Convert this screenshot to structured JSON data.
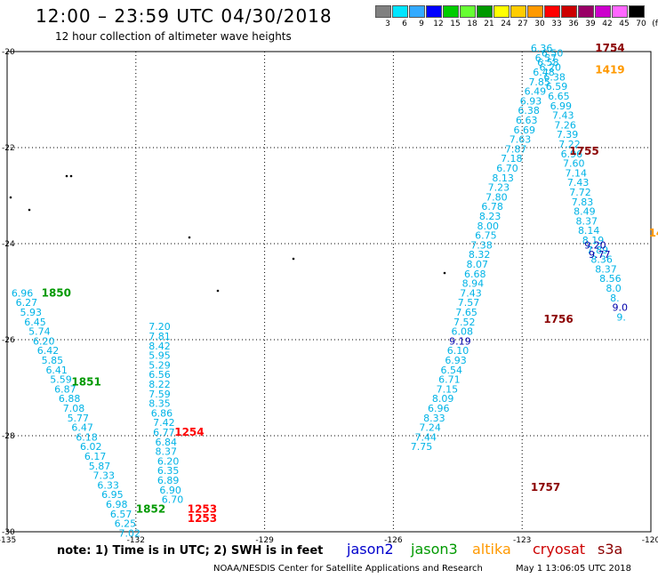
{
  "header": {
    "title": "12:00 – 23:59 UTC 04/30/2018",
    "subtitle": "12 hour collection of altimeter wave heights"
  },
  "scale": {
    "labels": [
      "3",
      "6",
      "9",
      "12",
      "15",
      "18",
      "21",
      "24",
      "27",
      "30",
      "33",
      "36",
      "39",
      "42",
      "45",
      "70",
      "(ft)"
    ],
    "colors": [
      "#808080",
      "#00e5ff",
      "#33aaff",
      "#0000ff",
      "#00cc00",
      "#66ff33",
      "#009900",
      "#ffff00",
      "#ffcc00",
      "#ff9900",
      "#ff0000",
      "#cc0000",
      "#990066",
      "#cc00cc",
      "#ff66ff",
      "#000000"
    ]
  },
  "footer": {
    "note": "note:  1) Time is in UTC;  2) SWH is in feet",
    "credit": "NOAA/NESDIS Center for Satellite Applications and Research",
    "stamp": "May  1 13:06:05 UTC 2018",
    "satellites": [
      {
        "name": "jason2",
        "color": "#0000cc"
      },
      {
        "name": "jason3",
        "color": "#009900"
      },
      {
        "name": "altika",
        "color": "#ff9900"
      },
      {
        "name": "cryosat",
        "color": "#cc0000"
      },
      {
        "name": "s3a",
        "color": "#8b0000"
      }
    ]
  },
  "chart_data": {
    "type": "scatter",
    "x_ticks": [
      "-135",
      "-132",
      "-129",
      "-126",
      "-123",
      "-120"
    ],
    "y_ticks": [
      "-20",
      "-22",
      "-24",
      "-26",
      "-28",
      "-30"
    ],
    "xlim": [
      -135,
      -120
    ],
    "ylim": [
      -30,
      -20
    ],
    "grid": true,
    "time_labels": [
      {
        "text": "1754",
        "x": -121.3,
        "y": -20.0,
        "color": "#8b0000"
      },
      {
        "text": "1419",
        "x": -121.3,
        "y": -20.45,
        "color": "#ff9900"
      },
      {
        "text": "1755",
        "x": -121.9,
        "y": -22.15,
        "color": "#8b0000"
      },
      {
        "text": "1850",
        "x": -134.2,
        "y": -25.1,
        "color": "#009900"
      },
      {
        "text": "1756",
        "x": -122.5,
        "y": -25.65,
        "color": "#8b0000"
      },
      {
        "text": "1851",
        "x": -133.5,
        "y": -26.95,
        "color": "#009900"
      },
      {
        "text": "1254",
        "x": -131.1,
        "y": -28.0,
        "color": "#ff0000"
      },
      {
        "text": "1757",
        "x": -122.8,
        "y": -29.15,
        "color": "#8b0000"
      },
      {
        "text": "1852",
        "x": -132.0,
        "y": -29.6,
        "color": "#009900"
      },
      {
        "text": "1253",
        "x": -130.8,
        "y": -29.6,
        "color": "#ff0000"
      },
      {
        "text": "1253",
        "x": -130.8,
        "y": -29.8,
        "color": "#ff0000"
      },
      {
        "text": "14",
        "x": -120.05,
        "y": -23.85,
        "color": "#ff9900"
      }
    ],
    "series": [
      {
        "name": "jason3",
        "color": "#00b3e6",
        "points": [
          {
            "x": -134.9,
            "y": -25.1,
            "v": "6.96"
          },
          {
            "x": -134.8,
            "y": -25.3,
            "v": "6.27"
          },
          {
            "x": -134.7,
            "y": -25.5,
            "v": "5.93"
          },
          {
            "x": -134.6,
            "y": -25.7,
            "v": "6.45"
          },
          {
            "x": -134.5,
            "y": -25.9,
            "v": "5.74"
          },
          {
            "x": -134.4,
            "y": -26.1,
            "v": "6.20"
          },
          {
            "x": -134.3,
            "y": -26.3,
            "v": "6.42"
          },
          {
            "x": -134.2,
            "y": -26.5,
            "v": "5.85"
          },
          {
            "x": -134.1,
            "y": -26.7,
            "v": "6.41"
          },
          {
            "x": -134.0,
            "y": -26.9,
            "v": "5.59"
          },
          {
            "x": -133.9,
            "y": -27.1,
            "v": "6.87"
          },
          {
            "x": -133.8,
            "y": -27.3,
            "v": "6.88"
          },
          {
            "x": -133.7,
            "y": -27.5,
            "v": "7.08"
          },
          {
            "x": -133.6,
            "y": -27.7,
            "v": "5.77"
          },
          {
            "x": -133.5,
            "y": -27.9,
            "v": "6.47"
          },
          {
            "x": -133.4,
            "y": -28.1,
            "v": "6.18"
          },
          {
            "x": -133.3,
            "y": -28.3,
            "v": "6.02"
          },
          {
            "x": -133.2,
            "y": -28.5,
            "v": "6.17"
          },
          {
            "x": -133.1,
            "y": -28.7,
            "v": "5.87"
          },
          {
            "x": -133.0,
            "y": -28.9,
            "v": "7.33"
          },
          {
            "x": -132.9,
            "y": -29.1,
            "v": "6.33"
          },
          {
            "x": -132.8,
            "y": -29.3,
            "v": "6.95"
          },
          {
            "x": -132.7,
            "y": -29.5,
            "v": "6.98"
          },
          {
            "x": -132.6,
            "y": -29.7,
            "v": "6.57"
          },
          {
            "x": -132.5,
            "y": -29.9,
            "v": "6.25"
          },
          {
            "x": -132.4,
            "y": -30.1,
            "v": "7.02"
          },
          {
            "x": -131.7,
            "y": -25.8,
            "v": "7.20"
          },
          {
            "x": -131.7,
            "y": -26.0,
            "v": "7.81"
          },
          {
            "x": -131.7,
            "y": -26.2,
            "v": "8.42"
          },
          {
            "x": -131.7,
            "y": -26.4,
            "v": "5.95"
          },
          {
            "x": -131.7,
            "y": -26.6,
            "v": "5.29"
          },
          {
            "x": -131.7,
            "y": -26.8,
            "v": "6.56"
          },
          {
            "x": -131.7,
            "y": -27.0,
            "v": "8.22"
          },
          {
            "x": -131.7,
            "y": -27.2,
            "v": "7.59"
          },
          {
            "x": -131.7,
            "y": -27.4,
            "v": "8.35"
          },
          {
            "x": -131.65,
            "y": -27.6,
            "v": "6.86"
          },
          {
            "x": -131.6,
            "y": -27.8,
            "v": "7.42"
          },
          {
            "x": -131.6,
            "y": -28.0,
            "v": "6.77"
          },
          {
            "x": -131.55,
            "y": -28.2,
            "v": "6.84"
          },
          {
            "x": -131.55,
            "y": -28.4,
            "v": "8.37"
          },
          {
            "x": -131.5,
            "y": -28.6,
            "v": "6.20"
          },
          {
            "x": -131.5,
            "y": -28.8,
            "v": "6.35"
          },
          {
            "x": -131.5,
            "y": -29.0,
            "v": "6.89"
          },
          {
            "x": -131.45,
            "y": -29.2,
            "v": "6.90"
          },
          {
            "x": -131.4,
            "y": -29.4,
            "v": "6.70"
          },
          {
            "x": -122.8,
            "y": -20.0,
            "v": "6.36"
          },
          {
            "x": -122.7,
            "y": -20.2,
            "v": "6.57"
          },
          {
            "x": -122.6,
            "y": -20.4,
            "v": "6.20"
          },
          {
            "x": -122.5,
            "y": -20.6,
            "v": "6.38"
          },
          {
            "x": -122.45,
            "y": -20.8,
            "v": "6.59"
          },
          {
            "x": -122.4,
            "y": -21.0,
            "v": "6.65"
          },
          {
            "x": -122.35,
            "y": -21.2,
            "v": "6.99"
          },
          {
            "x": -122.3,
            "y": -21.4,
            "v": "7.43"
          },
          {
            "x": -122.25,
            "y": -21.6,
            "v": "7.26"
          },
          {
            "x": -122.2,
            "y": -21.8,
            "v": "7.39"
          },
          {
            "x": -122.15,
            "y": -22.0,
            "v": "7.22"
          },
          {
            "x": -122.1,
            "y": -22.2,
            "v": "6.96"
          },
          {
            "x": -122.05,
            "y": -22.4,
            "v": "7.60"
          },
          {
            "x": -122.0,
            "y": -22.6,
            "v": "7.14"
          },
          {
            "x": -121.95,
            "y": -22.8,
            "v": "7.43"
          },
          {
            "x": -121.9,
            "y": -23.0,
            "v": "7.72"
          },
          {
            "x": -121.85,
            "y": -23.2,
            "v": "7.83"
          },
          {
            "x": -121.8,
            "y": -23.4,
            "v": "8.49"
          },
          {
            "x": -121.75,
            "y": -23.6,
            "v": "8.37"
          },
          {
            "x": -121.7,
            "y": -23.8,
            "v": "8.14"
          },
          {
            "x": -121.6,
            "y": -24.0,
            "v": "8.19"
          },
          {
            "x": -121.5,
            "y": -24.2,
            "v": "7.89"
          },
          {
            "x": -121.4,
            "y": -24.4,
            "v": "8.36"
          },
          {
            "x": -121.3,
            "y": -24.6,
            "v": "8.37"
          },
          {
            "x": -121.2,
            "y": -24.8,
            "v": "8.56"
          },
          {
            "x": -121.05,
            "y": -25.0,
            "v": "8.0"
          },
          {
            "x": -120.95,
            "y": -25.2,
            "v": "8."
          },
          {
            "x": -120.8,
            "y": -25.6,
            "v": "9."
          },
          {
            "x": -122.55,
            "y": -20.1,
            "v": "6.50"
          },
          {
            "x": -122.65,
            "y": -20.3,
            "v": "6.58"
          },
          {
            "x": -122.75,
            "y": -20.5,
            "v": "6.48"
          },
          {
            "x": -122.85,
            "y": -20.7,
            "v": "7.85"
          },
          {
            "x": -122.95,
            "y": -20.9,
            "v": "6.49"
          },
          {
            "x": -123.05,
            "y": -21.1,
            "v": "6.93"
          },
          {
            "x": -123.1,
            "y": -21.3,
            "v": "6.38"
          },
          {
            "x": -123.15,
            "y": -21.5,
            "v": "6.63"
          },
          {
            "x": -123.2,
            "y": -21.7,
            "v": "6.69"
          },
          {
            "x": -123.3,
            "y": -21.9,
            "v": "7.63"
          },
          {
            "x": -123.4,
            "y": -22.1,
            "v": "7.87"
          },
          {
            "x": -123.5,
            "y": -22.3,
            "v": "7.18"
          },
          {
            "x": -123.6,
            "y": -22.5,
            "v": "6.70"
          },
          {
            "x": -123.7,
            "y": -22.7,
            "v": "8.13"
          },
          {
            "x": -123.8,
            "y": -22.9,
            "v": "7.23"
          },
          {
            "x": -123.85,
            "y": -23.1,
            "v": "7.80"
          },
          {
            "x": -123.95,
            "y": -23.3,
            "v": "6.78"
          },
          {
            "x": -124.0,
            "y": -23.5,
            "v": "8.23"
          },
          {
            "x": -124.05,
            "y": -23.7,
            "v": "8.00"
          },
          {
            "x": -124.1,
            "y": -23.9,
            "v": "6.75"
          },
          {
            "x": -124.2,
            "y": -24.1,
            "v": "7.38"
          },
          {
            "x": -124.25,
            "y": -24.3,
            "v": "8.32"
          },
          {
            "x": -124.3,
            "y": -24.5,
            "v": "8.07"
          },
          {
            "x": -124.35,
            "y": -24.7,
            "v": "6.68"
          },
          {
            "x": -124.4,
            "y": -24.9,
            "v": "8.94"
          },
          {
            "x": -124.45,
            "y": -25.1,
            "v": "7.43"
          },
          {
            "x": -124.5,
            "y": -25.3,
            "v": "7.57"
          },
          {
            "x": -124.55,
            "y": -25.5,
            "v": "7.65"
          },
          {
            "x": -124.6,
            "y": -25.7,
            "v": "7.52"
          },
          {
            "x": -124.65,
            "y": -25.9,
            "v": "6.08"
          },
          {
            "x": -124.75,
            "y": -26.3,
            "v": "6.10"
          },
          {
            "x": -124.8,
            "y": -26.5,
            "v": "6.93"
          },
          {
            "x": -124.9,
            "y": -26.7,
            "v": "6.54"
          },
          {
            "x": -124.95,
            "y": -26.9,
            "v": "6.71"
          },
          {
            "x": -125.0,
            "y": -27.1,
            "v": "7.15"
          },
          {
            "x": -125.1,
            "y": -27.3,
            "v": "8.09"
          },
          {
            "x": -125.2,
            "y": -27.5,
            "v": "6.96"
          },
          {
            "x": -125.3,
            "y": -27.7,
            "v": "8.33"
          },
          {
            "x": -125.4,
            "y": -27.9,
            "v": "7.24"
          },
          {
            "x": -125.5,
            "y": -28.1,
            "v": "7.44"
          },
          {
            "x": -125.6,
            "y": -28.3,
            "v": "7.75"
          }
        ]
      },
      {
        "name": "jason2",
        "color": "#0000aa",
        "points": [
          {
            "x": -121.55,
            "y": -24.1,
            "v": "9.20"
          },
          {
            "x": -121.45,
            "y": -24.3,
            "v": "9.77"
          },
          {
            "x": -124.7,
            "y": -26.1,
            "v": "9.19"
          },
          {
            "x": -120.9,
            "y": -25.4,
            "v": "9.0"
          }
        ]
      }
    ]
  }
}
